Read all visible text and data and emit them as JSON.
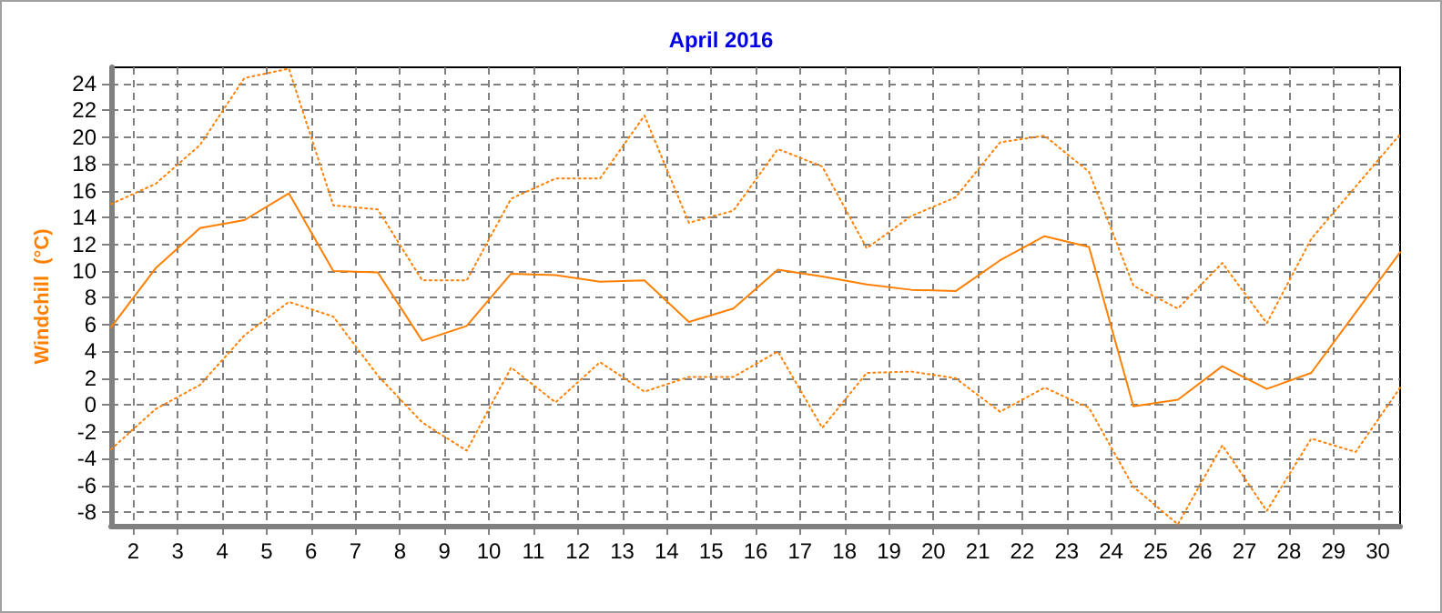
{
  "chart_data": {
    "type": "line",
    "title": "April 2016",
    "ylabel": "Windchill  (°C)",
    "x": [
      1.5,
      2.5,
      3.5,
      4.5,
      5.5,
      6.5,
      7.5,
      8.5,
      9.5,
      10.5,
      11.5,
      12.5,
      13.5,
      14.5,
      15.5,
      16.5,
      17.5,
      18.5,
      19.5,
      20.5,
      21.5,
      22.5,
      23.5,
      24.5,
      25.5,
      26.5,
      27.5,
      28.5,
      29.5,
      30.5
    ],
    "series": [
      {
        "color": "#ff8000",
        "line_style": "dotted",
        "values": [
          15.0,
          16.5,
          19.4,
          24.4,
          25.1,
          14.9,
          14.6,
          9.3,
          9.3,
          15.4,
          16.9,
          16.9,
          21.6,
          13.6,
          14.5,
          19.1,
          17.8,
          11.7,
          14.1,
          15.5,
          19.6,
          20.1,
          17.4,
          8.9,
          7.2,
          10.6,
          6.1,
          12.4,
          16.3,
          20.2
        ]
      },
      {
        "color": "#ff8000",
        "line_style": "solid",
        "values": [
          5.8,
          10.2,
          13.2,
          13.8,
          15.8,
          10.0,
          9.9,
          4.8,
          5.9,
          9.8,
          9.7,
          9.2,
          9.3,
          6.2,
          7.2,
          10.1,
          9.6,
          9.0,
          8.6,
          8.5,
          10.8,
          12.6,
          11.8,
          -0.1,
          0.4,
          2.9,
          1.2,
          2.4,
          6.9,
          11.4
        ]
      },
      {
        "color": "#ff8000",
        "line_style": "dotted",
        "values": [
          -3.3,
          -0.3,
          1.5,
          5.2,
          7.7,
          6.6,
          2.2,
          -1.3,
          -3.4,
          2.8,
          0.2,
          3.2,
          1.0,
          2.1,
          2.1,
          4.0,
          -1.7,
          2.4,
          2.5,
          2.0,
          -0.5,
          1.3,
          -0.2,
          -6.1,
          -8.9,
          -3.0,
          -7.9,
          -2.5,
          -3.5,
          1.3
        ]
      }
    ],
    "xlim": [
      1.5,
      30.5
    ],
    "xticks": [
      2,
      3,
      4,
      5,
      6,
      7,
      8,
      9,
      10,
      11,
      12,
      13,
      14,
      15,
      16,
      17,
      18,
      19,
      20,
      21,
      22,
      23,
      24,
      25,
      26,
      27,
      28,
      29,
      30
    ],
    "ylim": [
      -9,
      25.2
    ],
    "yticks": [
      -8,
      -6,
      -4,
      -2,
      0,
      2,
      4,
      6,
      8,
      10,
      12,
      14,
      16,
      18,
      20,
      22,
      24
    ],
    "grid": true,
    "marker": "none"
  }
}
